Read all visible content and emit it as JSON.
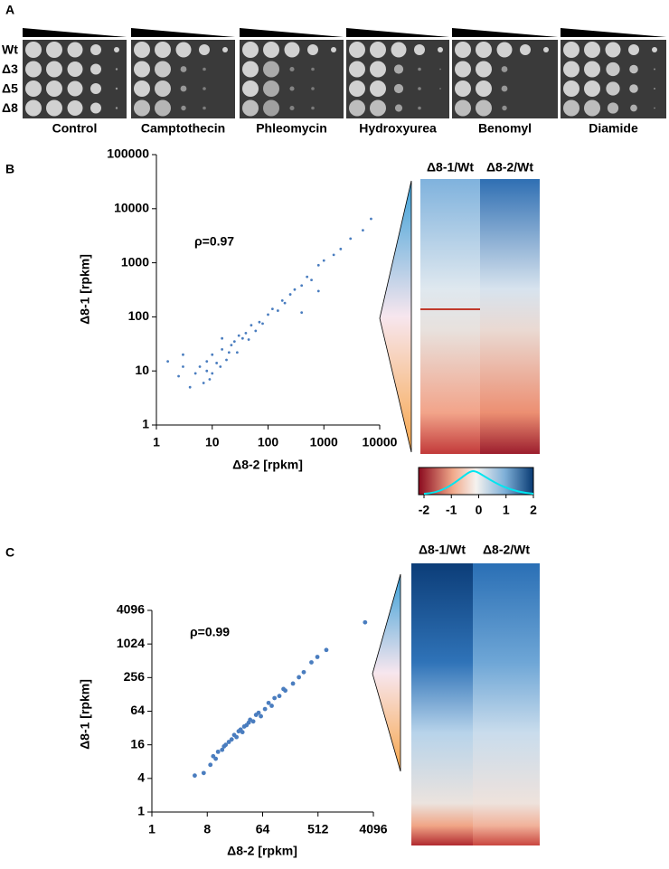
{
  "panel_a": {
    "label": "A",
    "strains": [
      "Wt",
      "Δ3",
      "Δ5",
      "Δ8"
    ],
    "conditions": [
      "Control",
      "Camptothecin",
      "Phleomycin",
      "Hydroxyurea",
      "Benomyl",
      "Diamide"
    ]
  },
  "heatmaps": [
    {
      "columns": [
        "Δ8-1/Wt",
        "Δ8-2/Wt"
      ]
    },
    {
      "columns": [
        "Δ8-1/Wt",
        "Δ8-2/Wt"
      ]
    }
  ],
  "chart_data": [
    {
      "type": "scatter",
      "panel": "B",
      "annotation": "ρ=0.97",
      "xlabel": "Δ8-2 [rpkm]",
      "ylabel": "Δ8-1 [rpkm]",
      "xscale": "log",
      "yscale": "log",
      "color": "#4a7dbf",
      "xlim": [
        1,
        10000
      ],
      "ylim": [
        1,
        100000
      ],
      "xticks": [
        1,
        10,
        100,
        1000,
        10000
      ],
      "yticks": [
        1,
        10,
        100,
        1000,
        10000,
        100000
      ],
      "x": [
        1.6,
        2.5,
        3,
        4,
        5,
        6,
        7,
        8,
        8,
        9,
        10,
        10,
        12,
        14,
        15,
        18,
        20,
        22,
        25,
        28,
        30,
        35,
        40,
        45,
        50,
        60,
        70,
        80,
        100,
        120,
        150,
        180,
        200,
        250,
        300,
        400,
        500,
        600,
        800,
        1000,
        1500,
        2000,
        3000,
        5000,
        7000,
        3,
        800,
        400,
        15
      ],
      "y": [
        15,
        8,
        12,
        5,
        9,
        12,
        6,
        10,
        15,
        7,
        20,
        9,
        14,
        12,
        25,
        16,
        22,
        30,
        35,
        22,
        45,
        40,
        50,
        38,
        70,
        55,
        80,
        75,
        110,
        140,
        130,
        200,
        180,
        260,
        320,
        380,
        550,
        480,
        900,
        1100,
        1400,
        1800,
        2800,
        4000,
        6500,
        20,
        300,
        120,
        40
      ]
    },
    {
      "type": "colorbar",
      "xlim": [
        -2,
        2
      ],
      "xticks": [
        -2,
        -1,
        0,
        1,
        2
      ]
    },
    {
      "type": "scatter",
      "panel": "C",
      "annotation": "ρ=0.99",
      "xlabel": "Δ8-2 [rpkm]",
      "ylabel": "Δ8-1 [rpkm]",
      "xscale": "log",
      "yscale": "log",
      "color": "#4a7dbf",
      "xlim": [
        1,
        4096
      ],
      "ylim": [
        1,
        4096
      ],
      "xticks": [
        1,
        8,
        64,
        512,
        4096
      ],
      "yticks": [
        1,
        4,
        16,
        64,
        256,
        1024,
        4096
      ],
      "x": [
        5,
        7,
        9,
        10,
        11,
        12,
        14,
        15,
        16,
        18,
        20,
        22,
        24,
        26,
        28,
        30,
        32,
        35,
        38,
        40,
        45,
        50,
        55,
        60,
        70,
        80,
        90,
        100,
        120,
        140,
        150,
        200,
        250,
        300,
        400,
        500,
        700,
        3000
      ],
      "y": [
        4.5,
        5,
        7,
        10,
        9,
        12,
        13,
        15,
        16,
        18,
        20,
        24,
        22,
        28,
        30,
        27,
        34,
        36,
        40,
        45,
        42,
        55,
        60,
        52,
        70,
        90,
        80,
        110,
        120,
        160,
        150,
        200,
        260,
        320,
        480,
        600,
        800,
        2500
      ]
    }
  ]
}
